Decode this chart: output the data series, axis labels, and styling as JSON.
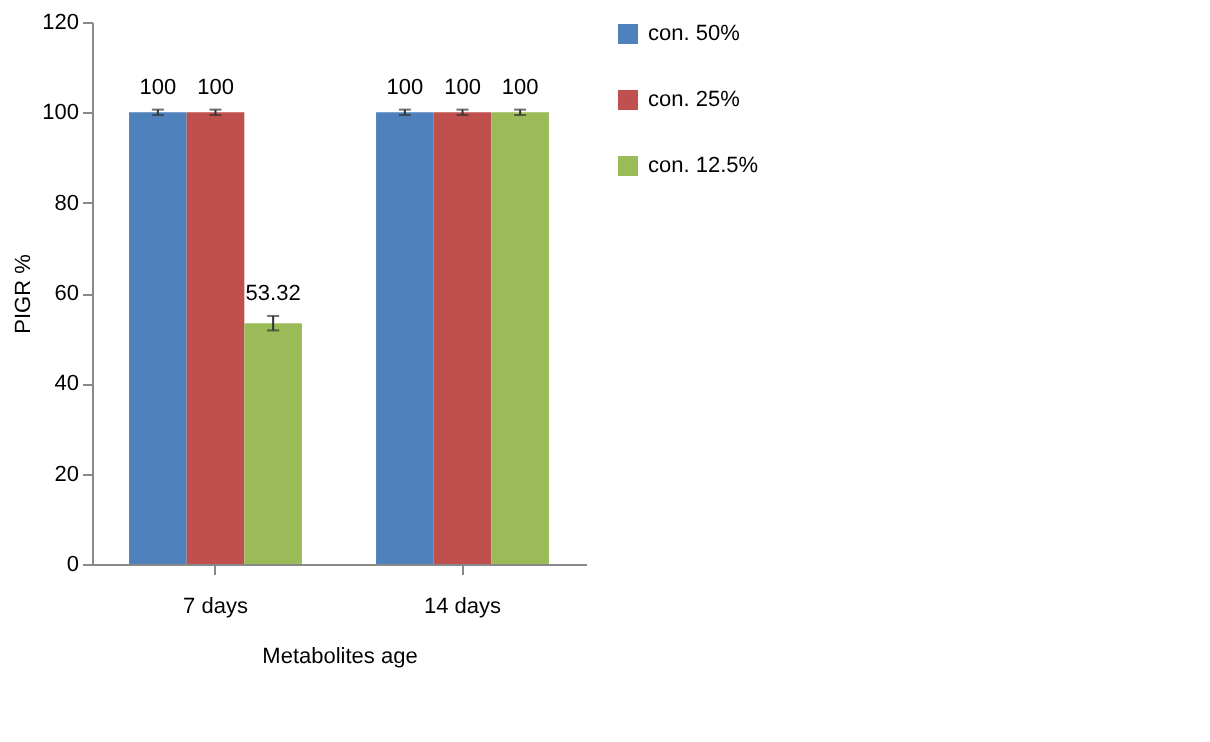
{
  "chart_data": {
    "type": "bar",
    "xlabel": "Metabolites age",
    "ylabel": "PIGR %",
    "categories": [
      "7 days",
      "14 days"
    ],
    "series": [
      {
        "name": "con. 50%",
        "color": "#4f81bd",
        "values": [
          100,
          100
        ],
        "errors": [
          0.6,
          0.6
        ]
      },
      {
        "name": "con. 25%",
        "color": "#c0504d",
        "values": [
          100,
          100
        ],
        "errors": [
          0.6,
          0.6
        ]
      },
      {
        "name": "con. 12.5%",
        "color": "#9bbb59",
        "values": [
          53.32,
          100
        ],
        "errors": [
          1.6,
          0.6
        ]
      }
    ],
    "ylim": [
      0,
      120
    ],
    "yticks": [
      0,
      20,
      40,
      60,
      80,
      100,
      120
    ],
    "grid": false,
    "legend": "right",
    "data_labels": true
  }
}
